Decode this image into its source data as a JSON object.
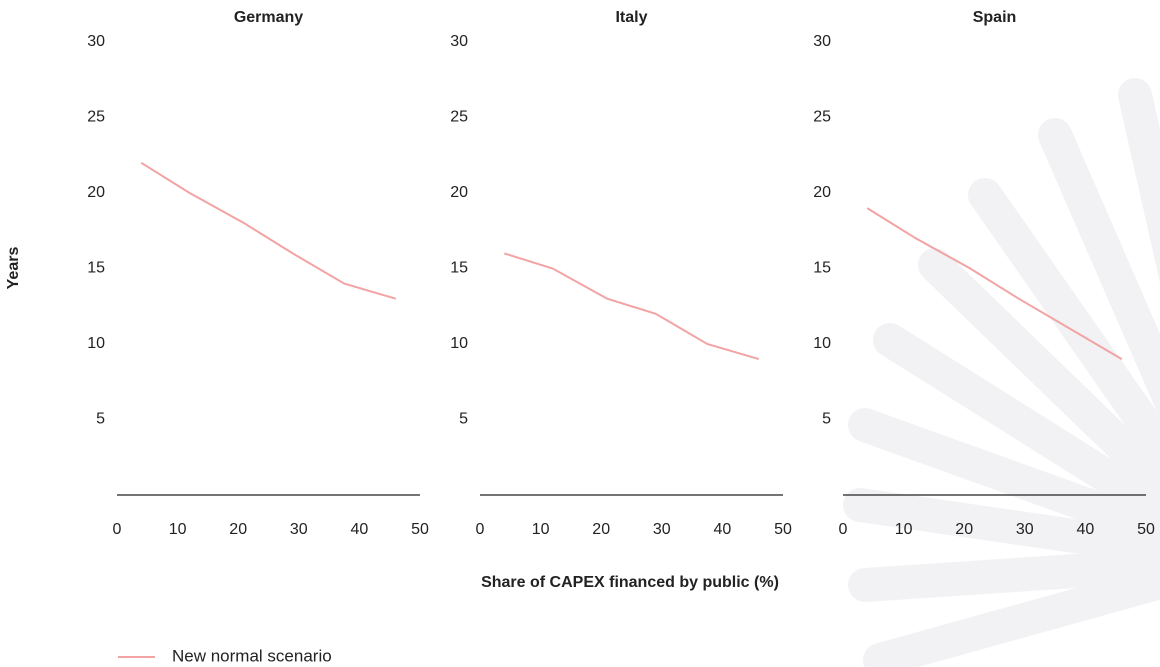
{
  "chart_data": [
    {
      "type": "line",
      "title": "Germany",
      "x": [
        4,
        12,
        21,
        29,
        37.5,
        46
      ],
      "values": [
        22,
        20,
        18,
        16,
        14,
        13
      ],
      "xlim": [
        0,
        50
      ],
      "ylim": [
        0,
        30
      ],
      "xticks": [
        0,
        10,
        20,
        30,
        40,
        50
      ],
      "yticks": [
        5,
        10,
        15,
        20,
        25,
        30
      ]
    },
    {
      "type": "line",
      "title": "Italy",
      "x": [
        4,
        12,
        21,
        29,
        37.5,
        46
      ],
      "values": [
        16,
        15,
        13,
        12,
        10,
        9
      ],
      "xlim": [
        0,
        50
      ],
      "ylim": [
        0,
        30
      ],
      "xticks": [
        0,
        10,
        20,
        30,
        40,
        50
      ],
      "yticks": [
        5,
        10,
        15,
        20,
        25,
        30
      ]
    },
    {
      "type": "line",
      "title": "Spain",
      "x": [
        4,
        12,
        21,
        29,
        37.5,
        46
      ],
      "values": [
        19,
        17,
        15,
        13,
        11,
        9
      ],
      "xlim": [
        0,
        50
      ],
      "ylim": [
        0,
        30
      ],
      "xticks": [
        0,
        10,
        20,
        30,
        40,
        50
      ],
      "yticks": [
        5,
        10,
        15,
        20,
        25,
        30
      ]
    }
  ],
  "x_label": "Share of CAPEX financed by public (%)",
  "y_label": "Years",
  "legend": {
    "name": "New normal scenario",
    "color": "#f2a3a3"
  }
}
